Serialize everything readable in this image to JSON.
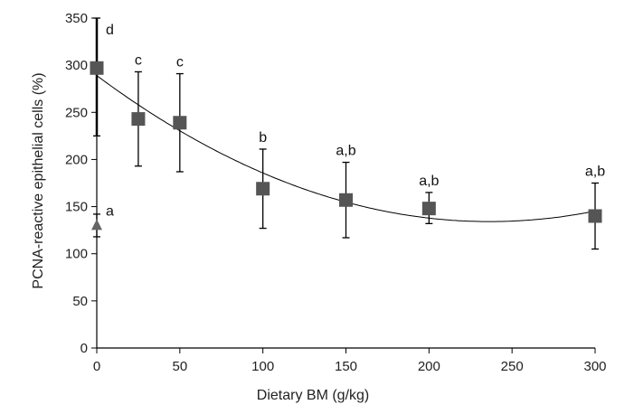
{
  "chart_data": {
    "type": "scatter",
    "title": "",
    "xlabel": "Dietary BM (g/kg)",
    "ylabel": "PCNA-reactive epithelial cells (%)",
    "xlim": [
      0,
      300
    ],
    "ylim": [
      0,
      350
    ],
    "x_ticks": [
      "0",
      "50",
      "100",
      "150",
      "200",
      "250",
      "300"
    ],
    "y_ticks": [
      "0",
      "50",
      "100",
      "150",
      "200",
      "250",
      "300",
      "350"
    ],
    "grid": false,
    "legend": "none",
    "series": [
      {
        "marker": "square",
        "color": "#555555",
        "points": [
          {
            "x": 0,
            "y": 297,
            "err_low": 72,
            "err_high": 53,
            "label": "d"
          },
          {
            "x": 25,
            "y": 243,
            "err_low": 50,
            "err_high": 50,
            "label": "c"
          },
          {
            "x": 50,
            "y": 239,
            "err_low": 52,
            "err_high": 52,
            "label": "c"
          },
          {
            "x": 100,
            "y": 169,
            "err_low": 42,
            "err_high": 42,
            "label": "b"
          },
          {
            "x": 150,
            "y": 157,
            "err_low": 40,
            "err_high": 40,
            "label": "a,b"
          },
          {
            "x": 200,
            "y": 148,
            "err_low": 16,
            "err_high": 17,
            "label": "a,b"
          },
          {
            "x": 300,
            "y": 140,
            "err_low": 35,
            "err_high": 35,
            "label": "a,b"
          }
        ]
      },
      {
        "marker": "triangle",
        "color": "#666666",
        "points": [
          {
            "x": 0,
            "y": 130,
            "err_low": 12,
            "err_high": 12,
            "label": "a"
          }
        ]
      }
    ],
    "fit_curve": {
      "type": "quadratic",
      "coefficients": [
        289,
        -1.31,
        0.00277
      ],
      "x_range": [
        0,
        300
      ]
    }
  }
}
